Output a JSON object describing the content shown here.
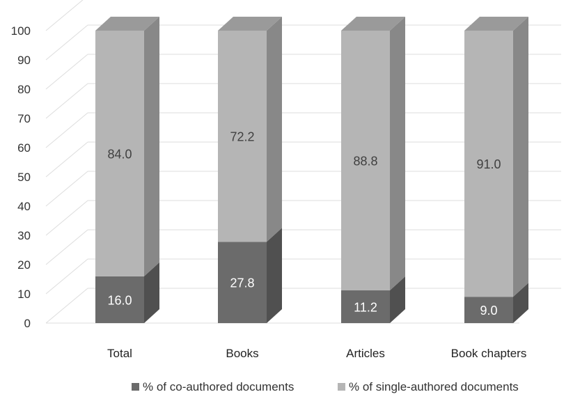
{
  "chart_data": {
    "type": "bar",
    "stacked": true,
    "three_d": true,
    "categories": [
      "Total",
      "Books",
      "Articles",
      "Book chapters"
    ],
    "series": [
      {
        "name": "% of co-authored documents",
        "values": [
          16.0,
          27.8,
          11.2,
          9.0
        ],
        "labels": [
          "16.0",
          "27.8",
          "11.2",
          "9.0"
        ],
        "color": "#6b6b6b"
      },
      {
        "name": "% of single-authored documents",
        "values": [
          84.0,
          72.2,
          88.8,
          91.0
        ],
        "labels": [
          "84.0",
          "72.2",
          "88.8",
          "91.0"
        ],
        "color": "#b5b5b5"
      }
    ],
    "yticks": [
      "0",
      "10",
      "20",
      "30",
      "40",
      "50",
      "60",
      "70",
      "80",
      "90",
      "100"
    ],
    "ylim": [
      0,
      100
    ],
    "grid": true,
    "legend": "bottom"
  }
}
